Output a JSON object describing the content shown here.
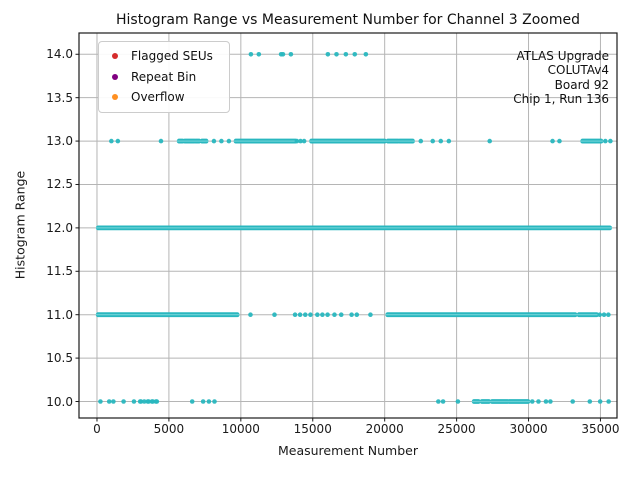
{
  "chart_data": {
    "type": "scatter",
    "title": "Histogram Range vs Measurement Number for Channel 3 Zoomed",
    "xlabel": "Measurement Number",
    "ylabel": "Histogram Range",
    "xlim": [
      -1250,
      36150
    ],
    "ylim": [
      9.81,
      14.245
    ],
    "x_ticks": [
      0,
      5000,
      10000,
      15000,
      20000,
      25000,
      30000,
      35000
    ],
    "y_ticks": [
      10.0,
      10.5,
      11.0,
      11.5,
      12.0,
      12.5,
      13.0,
      13.5,
      14.0
    ],
    "grid": true,
    "grid_color": "#b5b5b5",
    "point_color": "#29b7bf",
    "band_center_color": "#7ed8dc",
    "legend": {
      "position": "upper left",
      "items": [
        {
          "label": "Flagged SEUs",
          "color": "#d62c2c"
        },
        {
          "label": "Repeat Bin",
          "color": "#800080"
        },
        {
          "label": "Overflow",
          "color": "#ff9022"
        }
      ]
    },
    "annotation": {
      "align": "right",
      "lines": [
        "ATLAS Upgrade",
        "COLUTAv4",
        "Board 92",
        "Chip 1, Run 136"
      ]
    },
    "series": [
      {
        "name": "histogram-range-per-measurement",
        "color": "#29b7bf",
        "rows": [
          {
            "y": 14,
            "runs": [],
            "points": [
              10700,
              11250,
              12800,
              12930,
              13480,
              16050,
              16650,
              17300,
              17920,
              18690
            ]
          },
          {
            "y": 13,
            "runs": [
              [
                5700,
                5950
              ],
              [
                6100,
                6750
              ],
              [
                6850,
                7100
              ],
              [
                7300,
                7600
              ],
              [
                9650,
                13800
              ],
              [
                14900,
                20000
              ],
              [
                20220,
                20920
              ],
              [
                21030,
                21950
              ],
              [
                33750,
                35050
              ]
            ],
            "points": [
              1000,
              1450,
              4450,
              8130,
              8650,
              9170,
              13900,
              14150,
              14400,
              22510,
              23340,
              23900,
              24460,
              27300,
              31670,
              32150,
              35340,
              35690
            ]
          },
          {
            "y": 12,
            "runs": [
              [
                80,
                35650
              ]
            ],
            "points": []
          },
          {
            "y": 11,
            "runs": [
              [
                70,
                9760
              ],
              [
                20200,
                33250
              ],
              [
                33500,
                34740
              ]
            ],
            "points": [
              10670,
              12340,
              13770,
              14120,
              14480,
              14840,
              15320,
              15670,
              16030,
              16510,
              16980,
              17700,
              18060,
              19010,
              34950,
              35250,
              35550
            ]
          },
          {
            "y": 10,
            "runs": [
              [
                26210,
                26520
              ],
              [
                26760,
                27240
              ],
              [
                27470,
                28540
              ],
              [
                28660,
                29970
              ]
            ],
            "points": [
              240,
              850,
              1140,
              1850,
              2570,
              3000,
              3060,
              3290,
              3530,
              3590,
              3820,
              3880,
              4100,
              4160,
              6620,
              7380,
              7780,
              8170,
              23730,
              24060,
              25090,
              30260,
              30690,
              31210,
              31520,
              33070,
              34260,
              34980,
              35570
            ]
          }
        ]
      }
    ]
  }
}
